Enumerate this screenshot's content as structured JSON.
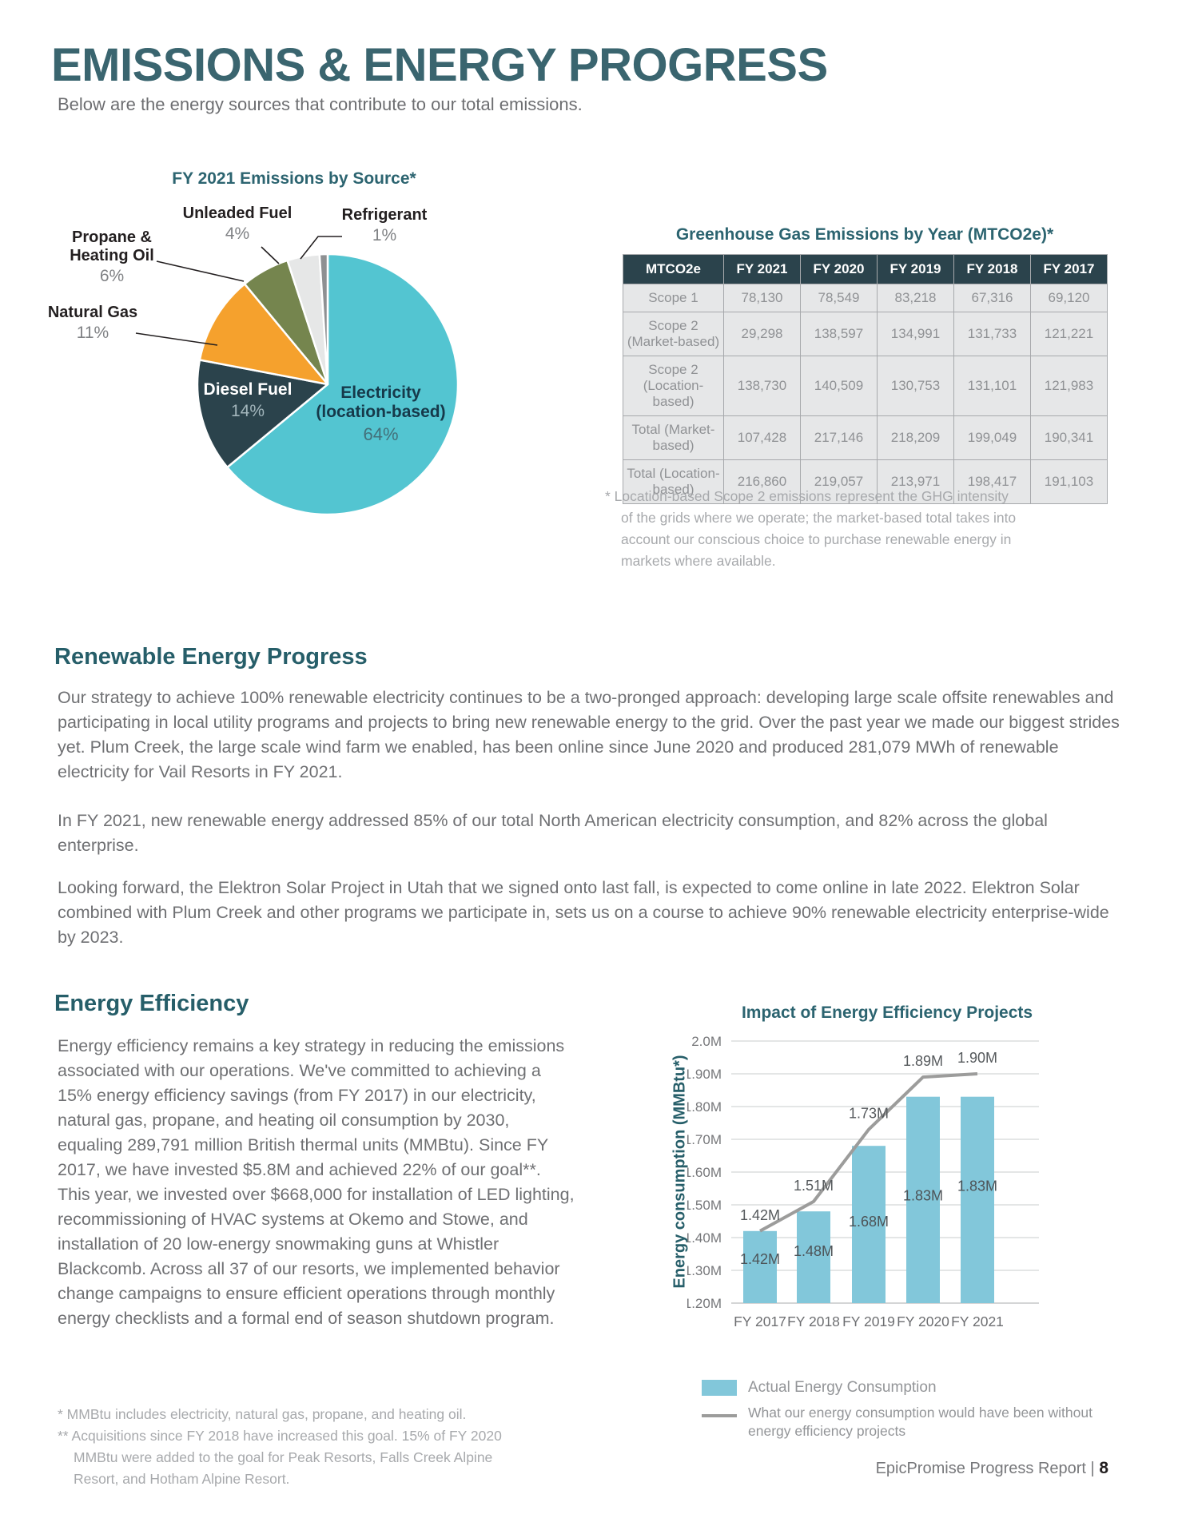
{
  "page": {
    "title": "EMISSIONS & ENERGY PROGRESS",
    "subtitle": "Below are the energy sources that contribute to our total emissions.",
    "footer": {
      "text": "EpicPromise Progress Report | ",
      "page_number": "8"
    }
  },
  "pie_labels": {
    "unleaded": {
      "name": "Unleaded Fuel",
      "pct": "4%"
    },
    "refrigerant": {
      "name": "Refrigerant",
      "pct": "1%"
    },
    "propane": {
      "line1": "Propane &",
      "line2": "Heating Oil",
      "pct": "6%"
    },
    "natural_gas": {
      "name": "Natural Gas",
      "pct": "11%"
    },
    "diesel": {
      "name": "Diesel Fuel",
      "pct": "14%"
    },
    "electricity": {
      "line1": "Electricity",
      "line2": "(location-based)",
      "pct": "64%"
    }
  },
  "table": {
    "title": "Greenhouse Gas Emissions by Year (MTCO2e)*",
    "columns": [
      "MTCO2e",
      "FY 2021",
      "FY 2020",
      "FY 2019",
      "FY 2018",
      "FY 2017"
    ],
    "rows": [
      {
        "label": "Scope 1",
        "values": [
          "78,130",
          "78,549",
          "83,218",
          "67,316",
          "69,120"
        ]
      },
      {
        "label": "Scope 2 (Market-based)",
        "values": [
          "29,298",
          "138,597",
          "134,991",
          "131,733",
          "121,221"
        ]
      },
      {
        "label": "Scope 2 (Location-based)",
        "values": [
          "138,730",
          "140,509",
          "130,753",
          "131,101",
          "121,983"
        ]
      },
      {
        "label": "Total (Market-based)",
        "values": [
          "107,428",
          "217,146",
          "218,209",
          "199,049",
          "190,341"
        ]
      },
      {
        "label": "Total (Location-based)",
        "values": [
          "216,860",
          "219,057",
          "213,971",
          "198,417",
          "191,103"
        ]
      }
    ],
    "footnote": "* Location-based Scope 2 emissions represent the GHG intensity of the grids where we operate; the market-based total takes into account our conscious choice to purchase renewable energy in markets where available."
  },
  "renewable": {
    "heading": "Renewable Energy Progress",
    "paragraphs": [
      "Our strategy to achieve 100% renewable electricity continues to be a two-pronged approach: developing large scale offsite renewables and participating in local utility programs and projects to bring new renewable energy to the grid. Over the past year we made our biggest strides yet. Plum Creek, the large scale wind farm we enabled, has been online since June 2020 and produced 281,079 MWh of renewable electricity for Vail Resorts in FY 2021.",
      "In FY 2021, new renewable energy addressed 85% of our total North American electricity consumption, and 82% across the global enterprise.",
      "Looking forward, the Elektron Solar Project in Utah that we signed onto last fall, is expected to come online in late 2022. Elektron Solar combined with Plum Creek and other programs we participate in, sets us on a course to achieve 90% renewable electricity enterprise-wide by 2023."
    ]
  },
  "efficiency": {
    "heading": "Energy Efficiency",
    "paragraph": "Energy efficiency remains a key strategy in reducing the emissions associated with our operations. We've committed to achieving a 15% energy efficiency savings (from FY 2017) in our electricity, natural gas, propane, and heating oil consumption by 2030, equaling 289,791 million British thermal units (MMBtu). Since FY 2017, we have invested $5.8M and achieved 22% of our goal**. This year, we invested over $668,000 for installation of LED lighting, recommissioning of HVAC systems at Okemo and Stowe, and installation of 20 low-energy snowmaking guns at Whistler Blackcomb. Across all 37 of our resorts, we implemented behavior change campaigns to ensure efficient operations through monthly energy checklists and a formal end of season shutdown program.",
    "footnotes": [
      "* MMBtu includes electricity, natural gas, propane, and heating oil.",
      "** Acquisitions since FY 2018 have increased this goal. 15% of FY 2020 MMBtu were added to the goal for Peak Resorts, Falls Creek Alpine Resort, and Hotham Alpine Resort."
    ]
  },
  "chart_data": [
    {
      "type": "pie",
      "title": "FY 2021 Emissions by Source*",
      "start": "12 o'clock, clockwise",
      "slices": [
        {
          "label": "Electricity (location-based)",
          "pct": 64,
          "color": "#53c5d1"
        },
        {
          "label": "Diesel Fuel",
          "pct": 14,
          "color": "#2b434c"
        },
        {
          "label": "Natural Gas",
          "pct": 11,
          "color": "#f5a12d"
        },
        {
          "label": "Propane & Heating Oil",
          "pct": 6,
          "color": "#75854e"
        },
        {
          "label": "Unleaded Fuel",
          "pct": 4,
          "color": "#e6e7e7"
        },
        {
          "label": "Refrigerant",
          "pct": 1,
          "color": "#8e9092"
        }
      ]
    },
    {
      "type": "bar",
      "title": "Impact of Energy Efficiency Projects",
      "categories": [
        "FY 2017",
        "FY 2018",
        "FY 2019",
        "FY 2020",
        "FY 2021"
      ],
      "series": [
        {
          "name": "Actual Energy Consumption",
          "type": "bar",
          "color": "#82c7da",
          "values": [
            1.42,
            1.48,
            1.68,
            1.83,
            1.83
          ],
          "labels": [
            "1.42M",
            "1.48M",
            "1.68M",
            "1.83M",
            "1.83M"
          ]
        },
        {
          "name": "What our energy consumption would have been without energy efficiency projects",
          "type": "line",
          "color": "#9c9c9b",
          "values": [
            1.42,
            1.51,
            1.73,
            1.89,
            1.9
          ],
          "labels": [
            "1.42M",
            "1.51M",
            "1.73M",
            "1.89M",
            "1.90M"
          ]
        }
      ],
      "ylabel": "Energy consumption (MMBtu*)",
      "ylim": [
        1.2,
        2.0
      ],
      "ytick_values": [
        2.0,
        1.9,
        1.8,
        1.7,
        1.6,
        1.5,
        1.4,
        1.3,
        1.2
      ],
      "yticks": [
        "2.0M",
        "1.90M",
        "1.80M",
        "1.70M",
        "1.60M",
        "1.50M",
        "1.40M",
        "1.30M",
        "1.20M"
      ],
      "legend_position": "bottom",
      "grid": true
    }
  ]
}
